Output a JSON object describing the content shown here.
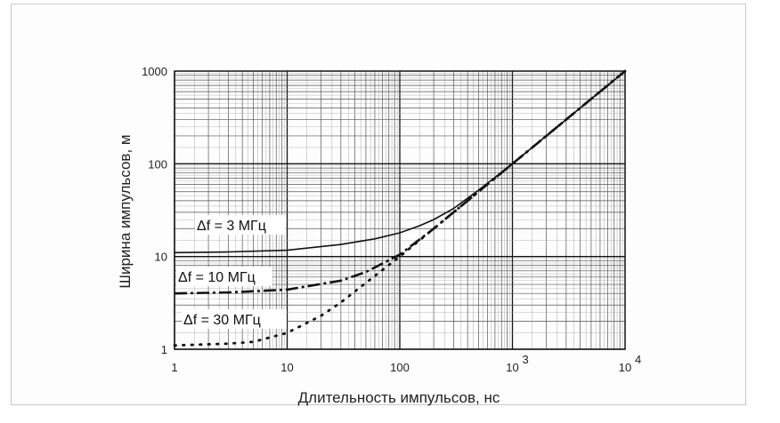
{
  "chart_data": {
    "type": "line",
    "xscale": "log",
    "yscale": "log",
    "xlim": [
      1,
      10000
    ],
    "ylim": [
      1,
      1000
    ],
    "xlabel": "Длительность импульсов, нс",
    "ylabel": "Ширина импульсов, м",
    "grid": true,
    "x_ticks": [
      "1",
      "10",
      "100",
      "10",
      "10"
    ],
    "x_tick_exponents": [
      "",
      "",
      "",
      "3",
      "4"
    ],
    "y_ticks": [
      "1000",
      "100",
      "10",
      "1"
    ],
    "series": [
      {
        "name": "Δf = 3 МГц",
        "style": "solid",
        "x": [
          1,
          3,
          10,
          30,
          60,
          100,
          150,
          200,
          300,
          500,
          1000,
          2000,
          5000,
          10000
        ],
        "y": [
          11.0,
          11.2,
          11.7,
          13.5,
          15.5,
          18.0,
          21.5,
          25.0,
          33.0,
          52.0,
          100.0,
          200.0,
          500.0,
          1000.0
        ]
      },
      {
        "name": "Δf = 10 МГц",
        "style": "dashdot",
        "x": [
          1,
          3,
          10,
          30,
          50,
          100,
          200,
          300,
          500,
          1000,
          2000,
          5000,
          10000
        ],
        "y": [
          4.0,
          4.1,
          4.4,
          5.5,
          6.8,
          10.5,
          20.0,
          30.0,
          50.0,
          100.0,
          200.0,
          500.0,
          1000.0
        ]
      },
      {
        "name": "Δf = 30 МГц",
        "style": "dotted",
        "x": [
          1,
          3,
          5,
          10,
          20,
          30,
          50,
          100,
          200,
          300,
          500,
          1000,
          2000,
          5000,
          10000
        ],
        "y": [
          1.1,
          1.15,
          1.2,
          1.5,
          2.3,
          3.2,
          5.2,
          10.0,
          20.0,
          30.0,
          50.0,
          100.0,
          200.0,
          500.0,
          1000.0
        ]
      }
    ]
  }
}
